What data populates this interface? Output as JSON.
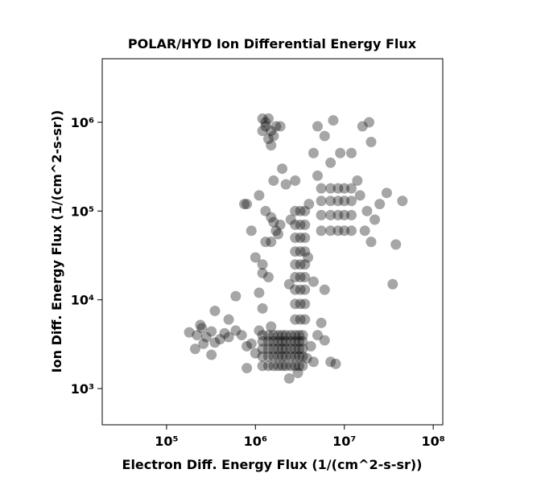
{
  "chart_data": {
    "type": "scatter",
    "title": "POLAR/HYD  Ion Differential Energy Flux",
    "x_label": "Electron Diff. Energy Flux (1/(cm^2-s-sr))",
    "y_label": "Ion Diff. Energy Flux (1/(cm^2-s-sr))",
    "log_x": true,
    "log_y": true,
    "color": "#000000",
    "opacity": 0.35,
    "xlim": [
      18900,
      128000000
    ],
    "ylim": [
      391,
      5200000
    ],
    "xticks": [
      {
        "value": 100000,
        "label": "10⁵"
      },
      {
        "value": 1000000,
        "label": "10⁶"
      },
      {
        "value": 10000000,
        "label": "10⁷"
      },
      {
        "value": 100000000,
        "label": "10⁸"
      }
    ],
    "yticks": [
      {
        "value": 1000,
        "label": "10³"
      },
      {
        "value": 10000,
        "label": "10⁴"
      },
      {
        "value": 100000,
        "label": "10⁵"
      },
      {
        "value": 1000000,
        "label": "10⁶"
      }
    ],
    "x": [
      1200000.0,
      1200000.0,
      1200000.0,
      1200000.0,
      1200000.0,
      1400000.0,
      1400000.0,
      1400000.0,
      1400000.0,
      1400000.0,
      1600000.0,
      1600000.0,
      1600000.0,
      1600000.0,
      1600000.0,
      1800000.0,
      1800000.0,
      1800000.0,
      1800000.0,
      1800000.0,
      2000000.0,
      2000000.0,
      2000000.0,
      2000000.0,
      2000000.0,
      2200000.0,
      2200000.0,
      2200000.0,
      2200000.0,
      2200000.0,
      2500000.0,
      2500000.0,
      2500000.0,
      2500000.0,
      2500000.0,
      2800000.0,
      2800000.0,
      2800000.0,
      2800000.0,
      2800000.0,
      3100000.0,
      3100000.0,
      3100000.0,
      3100000.0,
      3100000.0,
      3400000.0,
      3400000.0,
      3400000.0,
      3400000.0,
      3400000.0,
      1000000.0,
      900000.0,
      1100000.0,
      3800000.0,
      4200000.0,
      5000000.0,
      6000000.0,
      2400000.0,
      3000000.0,
      1500000.0,
      800000.0,
      4500000.0,
      7000000.0,
      5500000.0,
      180000.0,
      220000.0,
      250000.0,
      280000.0,
      320000.0,
      210000.0,
      260000.0,
      350000.0,
      400000.0,
      450000.0,
      320000.0,
      240000.0,
      500000.0,
      600000.0,
      350000.0,
      700000.0,
      2800000.0,
      2800000.0,
      2800000.0,
      2800000.0,
      2800000.0,
      2800000.0,
      2800000.0,
      2800000.0,
      2800000.0,
      3200000.0,
      3200000.0,
      3200000.0,
      3200000.0,
      3200000.0,
      3200000.0,
      3200000.0,
      3200000.0,
      3200000.0,
      3600000.0,
      3600000.0,
      3600000.0,
      3600000.0,
      3600000.0,
      3600000.0,
      3600000.0,
      3600000.0,
      3600000.0,
      4000000.0,
      2500000.0,
      2400000.0,
      3900000.0,
      1100000.0,
      1200000.0,
      1000000.0,
      1300000.0,
      1100000.0,
      1300000.0,
      900000.0,
      1200000.0,
      1400000.0,
      800000.0,
      1200000.0,
      1500000.0,
      1700000.0,
      1600000.0,
      1800000.0,
      1500000.0,
      1900000.0,
      5500000.0,
      5500000.0,
      5500000.0,
      5500000.0,
      7000000.0,
      7000000.0,
      7000000.0,
      7000000.0,
      8500000.0,
      8500000.0,
      8500000.0,
      8500000.0,
      10000000.0,
      10000000.0,
      10000000.0,
      10000000.0,
      12000000.0,
      12000000.0,
      12000000.0,
      12000000.0,
      15000000.0,
      18000000.0,
      22000000.0,
      25000000.0,
      30000000.0,
      45000000.0,
      35000000.0,
      38000000.0,
      20000000.0,
      14000000.0,
      17000000.0,
      9000000.0,
      7000000.0,
      12000000.0,
      16000000.0,
      19000000.0,
      20000000.0,
      6000000.0,
      5000000.0,
      7500000.0,
      4500000.0,
      5000000.0,
      1200000.0,
      1400000.0,
      1300000.0,
      1500000.0,
      1200000.0,
      1600000.0,
      1400000.0,
      1500000.0,
      1700000.0,
      1900000.0,
      1300000.0,
      2000000.0,
      2200000.0,
      1600000.0,
      2800000.0,
      750000.0,
      600000.0,
      500000.0,
      8000000.0,
      6000000.0,
      4500000.0,
      800000.0
    ],
    "values": [
      1800,
      2300,
      2800,
      3400,
      4000,
      1800,
      2300,
      2800,
      3400,
      4000,
      1800,
      2300,
      2800,
      3400,
      4000,
      1800,
      2300,
      2800,
      3400,
      4000,
      1800,
      2300,
      2800,
      3400,
      4000,
      1800,
      2300,
      2800,
      3400,
      4000,
      1800,
      2300,
      2800,
      3400,
      4000,
      1800,
      2300,
      2800,
      3400,
      4000,
      1800,
      2300,
      2800,
      3400,
      4000,
      1800,
      2300,
      2800,
      3400,
      4000,
      2500,
      3200,
      4500,
      2200,
      3000,
      4000,
      3500,
      1300,
      1500,
      5000,
      3000,
      2000,
      2000,
      5500,
      4300,
      4000,
      4800,
      3800,
      4400,
      2800,
      3200,
      3300,
      3600,
      4200,
      2400,
      5200,
      3800,
      4500,
      7500,
      4000,
      6000,
      9000,
      13000,
      18000,
      25000,
      35000,
      50000,
      70000,
      100000,
      6000,
      9000,
      13000,
      18000,
      25000,
      35000,
      50000,
      70000,
      100000,
      6000,
      9000,
      13000,
      18000,
      25000,
      35000,
      50000,
      70000,
      100000,
      120000,
      80000,
      15000,
      30000,
      12000,
      20000,
      30000,
      45000,
      150000,
      100000,
      60000,
      8000,
      18000,
      120000,
      25000,
      45000,
      60000,
      75000,
      55000,
      85000,
      70000,
      60000,
      90000,
      130000,
      180000,
      60000,
      90000,
      130000,
      180000,
      60000,
      90000,
      130000,
      180000,
      60000,
      90000,
      130000,
      180000,
      60000,
      90000,
      130000,
      180000,
      150000,
      100000,
      80000,
      120000,
      160000,
      130000,
      15000,
      42000,
      45000,
      220000,
      60000,
      450000,
      350000,
      450000,
      900000,
      1000000,
      600000,
      700000,
      900000,
      1050000,
      450000,
      250000,
      1100000,
      1100000,
      900000,
      800000,
      800000,
      700000,
      650000,
      550000,
      900000,
      900000,
      1000000,
      300000,
      200000,
      220000,
      220000,
      120000,
      11000,
      6000,
      1900,
      13000,
      16000,
      1700
    ]
  }
}
